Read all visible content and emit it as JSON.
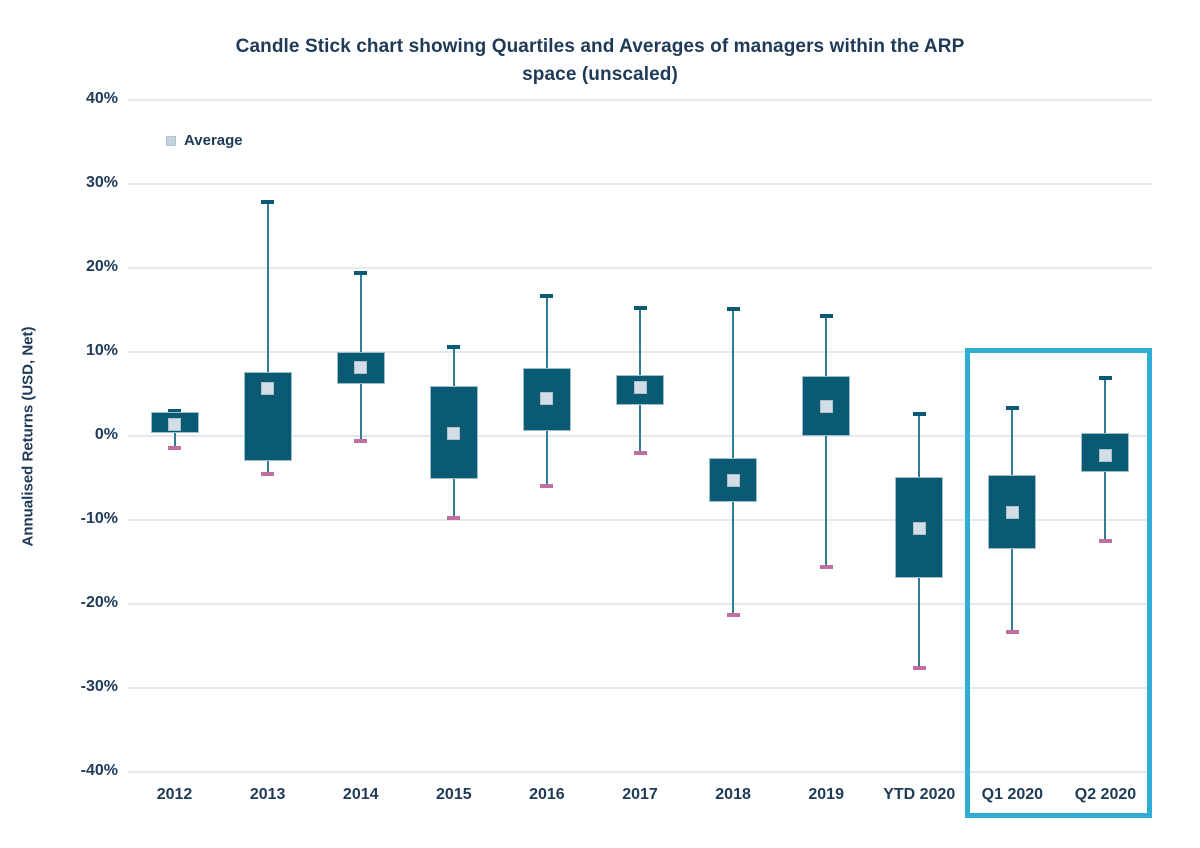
{
  "title": {
    "lines": [
      "Candle Stick chart showing Quartiles and Averages of managers within the ARP",
      "space  (unscaled)"
    ]
  },
  "legend": {
    "label": "Average",
    "marker_color": "#c5d3de"
  },
  "y_axis": {
    "title": "Annualised Returns (USD, Net)",
    "ticks": [
      "40%",
      "30%",
      "20%",
      "10%",
      "0%",
      "-10%",
      "-20%",
      "-30%",
      "-40%"
    ],
    "max": 40,
    "min": -40,
    "step": 10,
    "unit": "%"
  },
  "chart_data": {
    "type": "candlestick",
    "description": "Box = interquartile range (Q1-Q3), whiskers = high/low, square marker = average; values in % annualised returns (USD, Net)",
    "categories": [
      "2012",
      "2013",
      "2014",
      "2015",
      "2016",
      "2017",
      "2018",
      "2019",
      "YTD 2020",
      "Q1 2020",
      "Q2 2020"
    ],
    "points": [
      {
        "category": "2012",
        "high": 3.1,
        "q3": 2.8,
        "avg": 1.4,
        "q1": 0.4,
        "low": -1.4
      },
      {
        "category": "2013",
        "high": 28.0,
        "q3": 7.6,
        "avg": 5.6,
        "q1": -3.0,
        "low": -4.5
      },
      {
        "category": "2014",
        "high": 19.5,
        "q3": 10.0,
        "avg": 8.1,
        "q1": 6.2,
        "low": -0.6
      },
      {
        "category": "2015",
        "high": 10.7,
        "q3": 5.9,
        "avg": 0.3,
        "q1": -5.1,
        "low": -9.8
      },
      {
        "category": "2016",
        "high": 16.8,
        "q3": 8.1,
        "avg": 4.5,
        "q1": 0.6,
        "low": -5.9
      },
      {
        "category": "2017",
        "high": 15.4,
        "q3": 7.3,
        "avg": 5.8,
        "q1": 3.7,
        "low": -2.0
      },
      {
        "category": "2018",
        "high": 15.2,
        "q3": -2.6,
        "avg": -5.3,
        "q1": -7.9,
        "low": -21.3
      },
      {
        "category": "2019",
        "high": 14.4,
        "q3": 7.1,
        "avg": 3.5,
        "q1": 0.0,
        "low": -15.6
      },
      {
        "category": "YTD 2020",
        "high": 2.7,
        "q3": -4.9,
        "avg": -11.0,
        "q1": -16.9,
        "low": -27.6
      },
      {
        "category": "Q1 2020",
        "high": 3.5,
        "q3": -4.7,
        "avg": -9.1,
        "q1": -13.4,
        "low": -23.3
      },
      {
        "category": "Q2 2020",
        "high": 7.0,
        "q3": 0.3,
        "avg": -2.3,
        "q1": -4.3,
        "low": -12.5
      }
    ],
    "highlight": {
      "categories": [
        "Q1 2020",
        "Q2 2020"
      ],
      "color": "#30add2"
    },
    "legend_position": "top-left",
    "grid": true,
    "ylim": [
      -40,
      40
    ]
  },
  "colors": {
    "box_fill": "#0b5a73",
    "box_border": "#9cc0cf",
    "whisker": "#2f7d97",
    "high_cap": "#0b5a73",
    "low_cap": "#c06fa0",
    "avg_fill": "#d3dde6",
    "grid": "#e4e9ed",
    "text": "#1e3a57",
    "highlight": "#30add2"
  }
}
